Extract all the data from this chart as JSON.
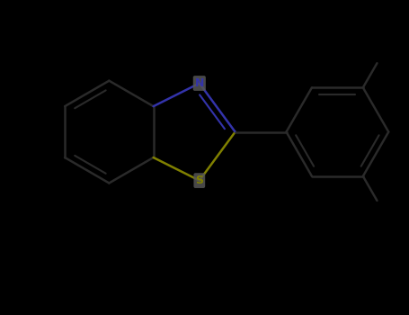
{
  "background_color": "#000000",
  "bond_color": "#2a2a2a",
  "N_color": "#3333aa",
  "S_color": "#808000",
  "atom_bg_color": "#555555",
  "bond_width": 1.8,
  "figsize": [
    4.55,
    3.5
  ],
  "dpi": 100,
  "xlim": [
    -3.0,
    5.0
  ],
  "ylim": [
    -2.5,
    2.5
  ]
}
